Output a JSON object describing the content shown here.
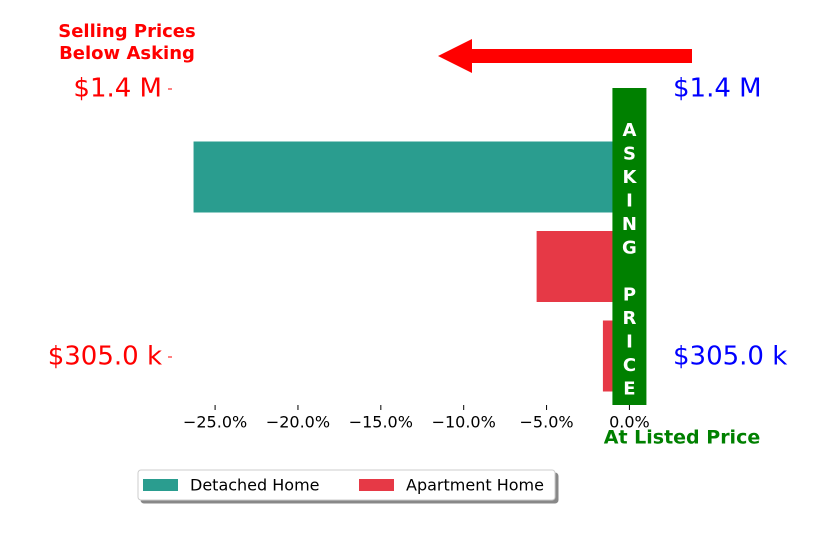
{
  "chart_data": {
    "type": "barh",
    "categories": [
      null,
      null,
      null
    ],
    "series": [
      {
        "name": "Detached Home",
        "color": "#2a9d8f",
        "values": [
          -26.3,
          null,
          null
        ]
      },
      {
        "name": "Apartment Home",
        "color": "#e63946",
        "values": [
          null,
          -5.6,
          -1.6
        ]
      }
    ],
    "xlim": [
      -27.6,
      1.0
    ],
    "xticks": [
      {
        "value": -25,
        "label": "−25.0%"
      },
      {
        "value": -20,
        "label": "−20.0%"
      },
      {
        "value": -15,
        "label": "−15.0%"
      },
      {
        "value": -10,
        "label": "−10.0%"
      },
      {
        "value": -5,
        "label": "−5.0%"
      },
      {
        "value": 0,
        "label": "0.0%"
      }
    ],
    "left_labels": [
      "$1.4 M",
      "$305.0 k"
    ],
    "right_labels": [
      "$1.4 M",
      "$305.0 k"
    ],
    "annotation_top": [
      "Selling Prices",
      "Below Asking"
    ],
    "asking_label": "ASKING PRICE",
    "listed_label": "At Listed Price",
    "legend": "lower left"
  }
}
